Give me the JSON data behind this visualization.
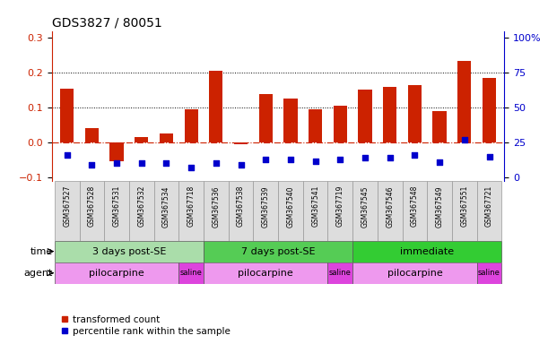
{
  "title": "GDS3827 / 80051",
  "samples": [
    "GSM367527",
    "GSM367528",
    "GSM367531",
    "GSM367532",
    "GSM367534",
    "GSM367718",
    "GSM367536",
    "GSM367538",
    "GSM367539",
    "GSM367540",
    "GSM367541",
    "GSM367719",
    "GSM367545",
    "GSM367546",
    "GSM367548",
    "GSM367549",
    "GSM367551",
    "GSM367721"
  ],
  "transformed_count": [
    0.155,
    0.04,
    -0.055,
    0.015,
    0.025,
    0.095,
    0.205,
    -0.005,
    0.14,
    0.125,
    0.095,
    0.105,
    0.152,
    0.16,
    0.165,
    0.09,
    0.235,
    0.185
  ],
  "percentile_rank_display": [
    -0.035,
    -0.065,
    -0.06,
    -0.06,
    -0.06,
    -0.073,
    -0.06,
    -0.065,
    -0.05,
    -0.048,
    -0.055,
    -0.05,
    -0.045,
    -0.045,
    -0.035,
    -0.058,
    0.008,
    -0.042
  ],
  "bar_color": "#cc2200",
  "dot_color": "#0000cc",
  "ylim": [
    -0.11,
    0.32
  ],
  "yticks_left": [
    -0.1,
    0.0,
    0.1,
    0.2,
    0.3
  ],
  "yticks_right_vals": [
    0,
    25,
    50,
    75,
    100
  ],
  "yticks_right_pos": [
    -0.1,
    0.0,
    0.1,
    0.2,
    0.3
  ],
  "hline_y": 0.0,
  "dotted_lines": [
    0.1,
    0.2
  ],
  "time_groups": [
    {
      "label": "3 days post-SE",
      "start": 0,
      "end": 6,
      "color": "#aaddaa"
    },
    {
      "label": "7 days post-SE",
      "start": 6,
      "end": 12,
      "color": "#55cc55"
    },
    {
      "label": "immediate",
      "start": 12,
      "end": 18,
      "color": "#33cc33"
    }
  ],
  "agent_groups": [
    {
      "label": "pilocarpine",
      "start": 0,
      "end": 5,
      "color": "#ee99ee"
    },
    {
      "label": "saline",
      "start": 5,
      "end": 6,
      "color": "#dd44dd"
    },
    {
      "label": "pilocarpine",
      "start": 6,
      "end": 11,
      "color": "#ee99ee"
    },
    {
      "label": "saline",
      "start": 11,
      "end": 12,
      "color": "#dd44dd"
    },
    {
      "label": "pilocarpine",
      "start": 12,
      "end": 17,
      "color": "#ee99ee"
    },
    {
      "label": "saline",
      "start": 17,
      "end": 18,
      "color": "#dd44dd"
    }
  ],
  "legend_red": "transformed count",
  "legend_blue": "percentile rank within the sample",
  "label_time": "time",
  "label_agent": "agent"
}
